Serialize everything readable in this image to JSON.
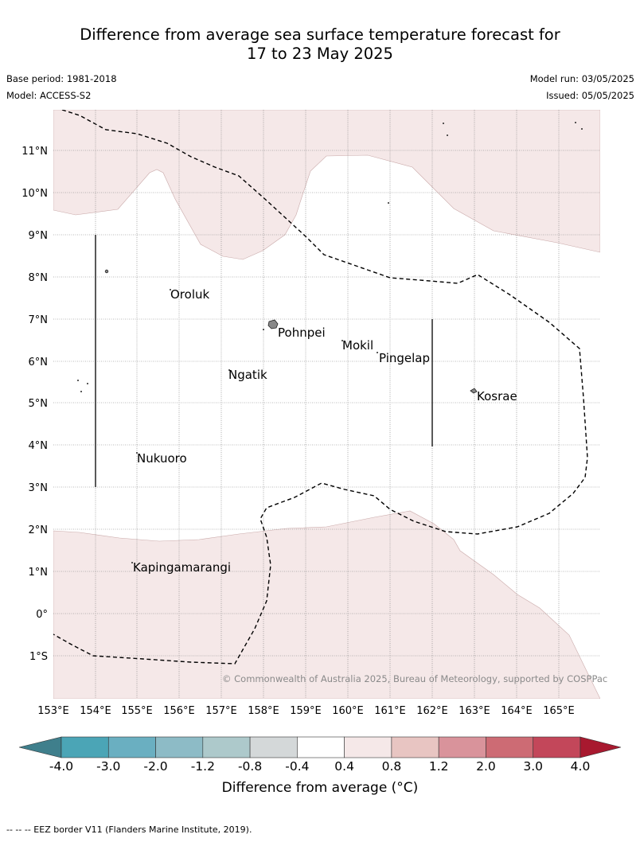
{
  "title_line1": "Difference from average sea surface temperature forecast for",
  "title_line2": "17 to 23 May 2025",
  "base_period": "Base period: 1981-2018",
  "model": "Model: ACCESS-S2",
  "model_run": "Model run: 03/05/2025",
  "issued": "Issued: 05/05/2025",
  "copyright": "© Commonwealth of Australia 2025, Bureau of Meteorology, supported by COSPPac",
  "map": {
    "lon_labels": [
      "153°E",
      "154°E",
      "155°E",
      "156°E",
      "157°E",
      "158°E",
      "159°E",
      "160°E",
      "161°E",
      "162°E",
      "163°E",
      "164°E",
      "165°E"
    ],
    "lat_labels": [
      "11°N",
      "10°N",
      "9°N",
      "8°N",
      "7°N",
      "6°N",
      "5°N",
      "4°N",
      "3°N",
      "2°N",
      "1°N",
      "0°",
      "1°S"
    ],
    "places": [
      "Oroluk",
      "Pohnpei",
      "Mokil",
      "Pingelap",
      "Ngatik",
      "Kosrae",
      "Nukuoro",
      "Kapingamarangi"
    ]
  },
  "colorbar": {
    "title": "Difference from average (°C)",
    "tick_labels": [
      "-4.0",
      "-3.0",
      "-2.0",
      "-1.2",
      "-0.8",
      "-0.4",
      "0.4",
      "0.8",
      "1.2",
      "2.0",
      "3.0",
      "4.0"
    ],
    "colors": [
      "#3f7f8c",
      "#4ba5b6",
      "#6aafc1",
      "#8dbbc6",
      "#adc9cb",
      "#d4d8d9",
      "#ffffff",
      "#f5e8e8",
      "#e8c5c2",
      "#d9939b",
      "#cd6b74",
      "#c3475a",
      "#a8192f"
    ]
  },
  "footnote": "--  --  -- EEZ border V11 (Flanders Marine Institute, 2019)."
}
